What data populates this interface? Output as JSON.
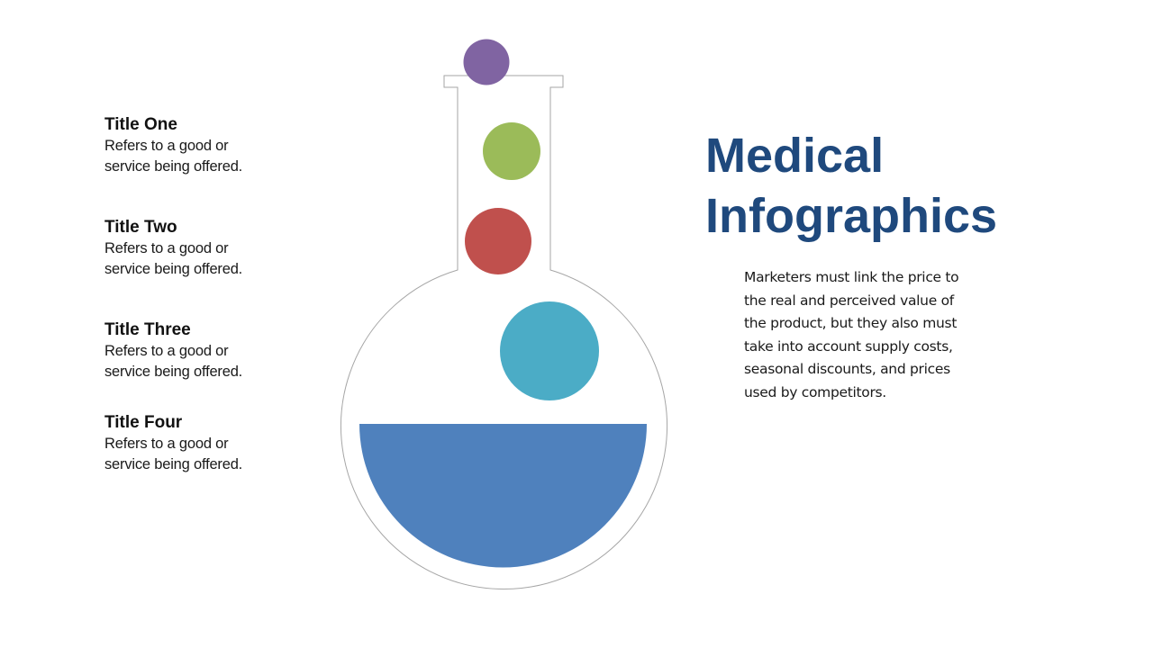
{
  "slide": {
    "heading": "Medical\nInfographics",
    "body": "Marketers  must link the price to\nthe real and perceived  value of\nthe product, but they also must\ntake into account supply costs,\nseasonal discounts, and prices\nused by competitors."
  },
  "items": [
    {
      "title": "Title One",
      "desc": "Refers to a good or\nservice being offered."
    },
    {
      "title": "Title Two",
      "desc": "Refers to a good or\nservice being offered."
    },
    {
      "title": "Title Three",
      "desc": "Refers to a good or\nservice being offered."
    },
    {
      "title": "Title Four",
      "desc": "Refers to a good or\nservice being offered."
    }
  ],
  "colors": {
    "heading": "#1F497D",
    "outline": "#A6A6A6",
    "liquid": "#4F81BD",
    "bubble_top": "#8064A2",
    "bubble_neck": "#9BBB59",
    "bubble_mid": "#C0504D",
    "bubble_bowl": "#4BACC6"
  }
}
